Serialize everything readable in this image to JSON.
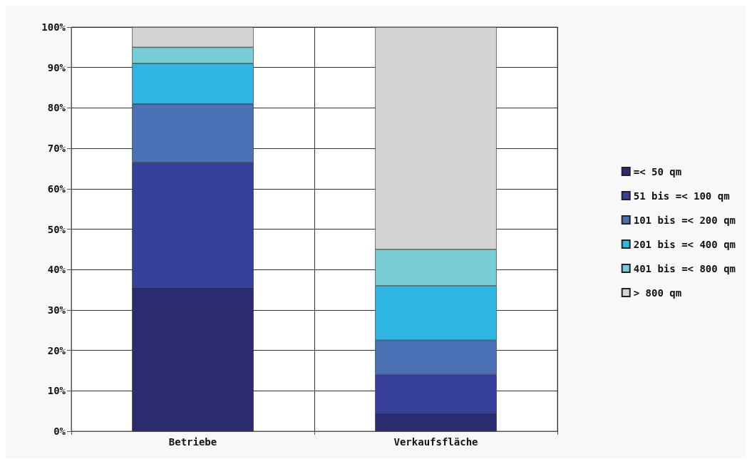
{
  "chart_data": {
    "type": "bar",
    "stacked": true,
    "categories": [
      "Betriebe",
      "Verkaufsfläche"
    ],
    "series": [
      {
        "name": "=< 50 qm",
        "color": "#2b2b70",
        "values": [
          35.5,
          4.5
        ]
      },
      {
        "name": "51 bis =< 100 qm",
        "color": "#36409c",
        "values": [
          31,
          9.5
        ]
      },
      {
        "name": "101 bis =< 200 qm",
        "color": "#4a70b6",
        "values": [
          14.5,
          8.5
        ]
      },
      {
        "name": "201 bis =< 400 qm",
        "color": "#2fb6e2",
        "values": [
          10,
          13.5
        ]
      },
      {
        "name": "401 bis =< 800 qm",
        "color": "#78ccd6",
        "values": [
          4,
          9
        ]
      },
      {
        "name": "> 800 qm",
        "color": "#d4d4d4",
        "values": [
          5,
          55
        ]
      }
    ],
    "ylim": [
      0,
      100
    ],
    "yticks": [
      {
        "value": 0,
        "label": "0%"
      },
      {
        "value": 10,
        "label": "10%"
      },
      {
        "value": 20,
        "label": "20%"
      },
      {
        "value": 30,
        "label": "30%"
      },
      {
        "value": 40,
        "label": "40%"
      },
      {
        "value": 50,
        "label": "50%"
      },
      {
        "value": 60,
        "label": "60%"
      },
      {
        "value": 70,
        "label": "70%"
      },
      {
        "value": 80,
        "label": "80%"
      },
      {
        "value": 90,
        "label": "90%"
      },
      {
        "value": 100,
        "label": "100%"
      }
    ],
    "grid": true,
    "legend": "right"
  }
}
